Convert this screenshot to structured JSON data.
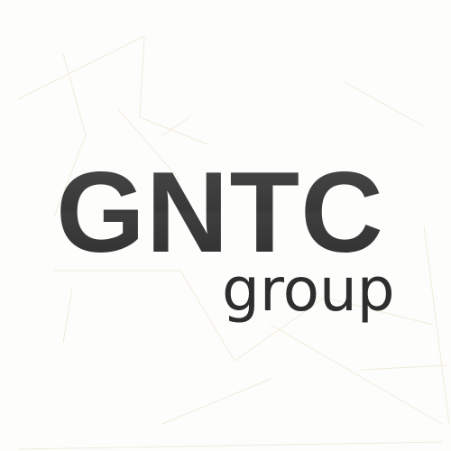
{
  "logo": {
    "main_text": "GNTC",
    "sub_text": "group"
  },
  "colors": {
    "background": "#fdfdfc",
    "text": "#333333",
    "lines": "#f1ead6"
  }
}
